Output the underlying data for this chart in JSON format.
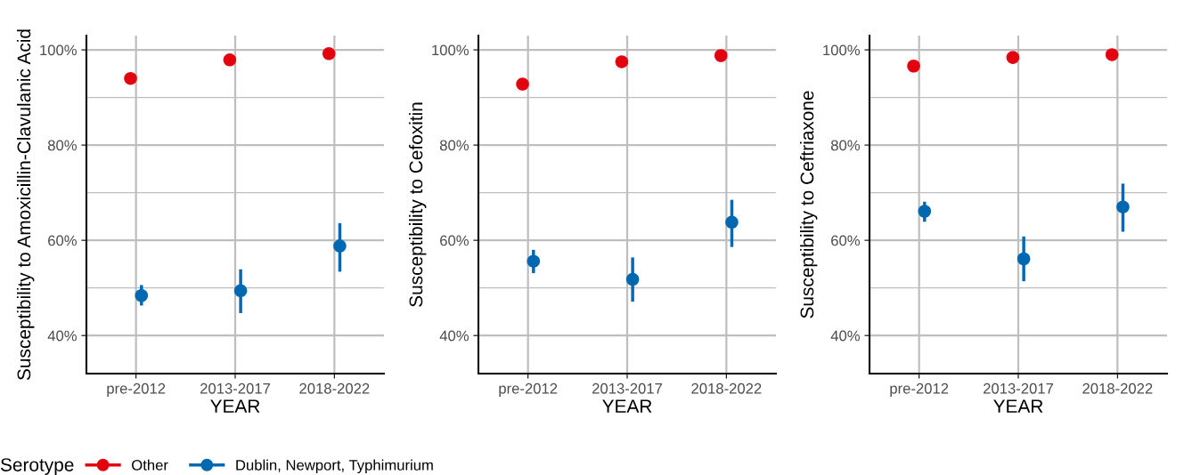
{
  "chart_data": [
    {
      "type": "scatter",
      "ylabel": "Susceptibility to Amoxicillin-Clavulanic Acid",
      "xlabel": "YEAR",
      "categories": [
        "pre-2012",
        "2013-2017",
        "2018-2022"
      ],
      "ylim": [
        32,
        103
      ],
      "yticks": [
        {
          "value": 40,
          "label": "40%"
        },
        {
          "value": 50,
          "label": null
        },
        {
          "value": 60,
          "label": "60%"
        },
        {
          "value": 70,
          "label": null
        },
        {
          "value": 80,
          "label": "80%"
        },
        {
          "value": 90,
          "label": null
        },
        {
          "value": 100,
          "label": "100%"
        }
      ],
      "grid": true,
      "marker": "circle",
      "legend": "bottom",
      "legend_title": "Serotype",
      "series": [
        {
          "name": "Other",
          "color": "#e3000f",
          "values": [
            94.0,
            97.9,
            99.2
          ]
        },
        {
          "name": "Dublin, Newport, Typhimurium",
          "color": "#0068b1",
          "values": [
            48.4,
            49.4,
            58.8
          ],
          "errors": [
            [
              46.3,
              50.6
            ],
            [
              44.7,
              53.9
            ],
            [
              53.4,
              63.6
            ]
          ]
        }
      ]
    },
    {
      "type": "scatter",
      "ylabel": "Susceptibility to Cefoxitin",
      "xlabel": "YEAR",
      "categories": [
        "pre-2012",
        "2013-2017",
        "2018-2022"
      ],
      "ylim": [
        32,
        103
      ],
      "yticks": [
        {
          "value": 40,
          "label": "40%"
        },
        {
          "value": 50,
          "label": null
        },
        {
          "value": 60,
          "label": "60%"
        },
        {
          "value": 70,
          "label": null
        },
        {
          "value": 80,
          "label": "80%"
        },
        {
          "value": 90,
          "label": null
        },
        {
          "value": 100,
          "label": "100%"
        }
      ],
      "grid": true,
      "marker": "circle",
      "series": [
        {
          "color": "#e3000f",
          "values": [
            92.8,
            97.5,
            98.8
          ]
        },
        {
          "color": "#0068b1",
          "values": [
            55.6,
            51.8,
            63.8
          ],
          "errors": [
            [
              53.1,
              58.0
            ],
            [
              47.1,
              56.4
            ],
            [
              58.6,
              68.5
            ]
          ]
        }
      ]
    },
    {
      "type": "scatter",
      "ylabel": "Susceptibility to Ceftriaxone",
      "xlabel": "YEAR",
      "categories": [
        "pre-2012",
        "2013-2017",
        "2018-2022"
      ],
      "ylim": [
        32,
        103
      ],
      "yticks": [
        {
          "value": 40,
          "label": "40%"
        },
        {
          "value": 50,
          "label": null
        },
        {
          "value": 60,
          "label": "60%"
        },
        {
          "value": 70,
          "label": null
        },
        {
          "value": 80,
          "label": "80%"
        },
        {
          "value": 90,
          "label": null
        },
        {
          "value": 100,
          "label": "100%"
        }
      ],
      "grid": true,
      "marker": "circle",
      "series": [
        {
          "color": "#e3000f",
          "values": [
            96.6,
            98.4,
            99.0
          ]
        },
        {
          "color": "#0068b1",
          "values": [
            66.1,
            56.1,
            67.0
          ],
          "errors": [
            [
              63.9,
              68.1
            ],
            [
              51.4,
              60.8
            ],
            [
              61.8,
              71.9
            ]
          ]
        }
      ]
    }
  ]
}
